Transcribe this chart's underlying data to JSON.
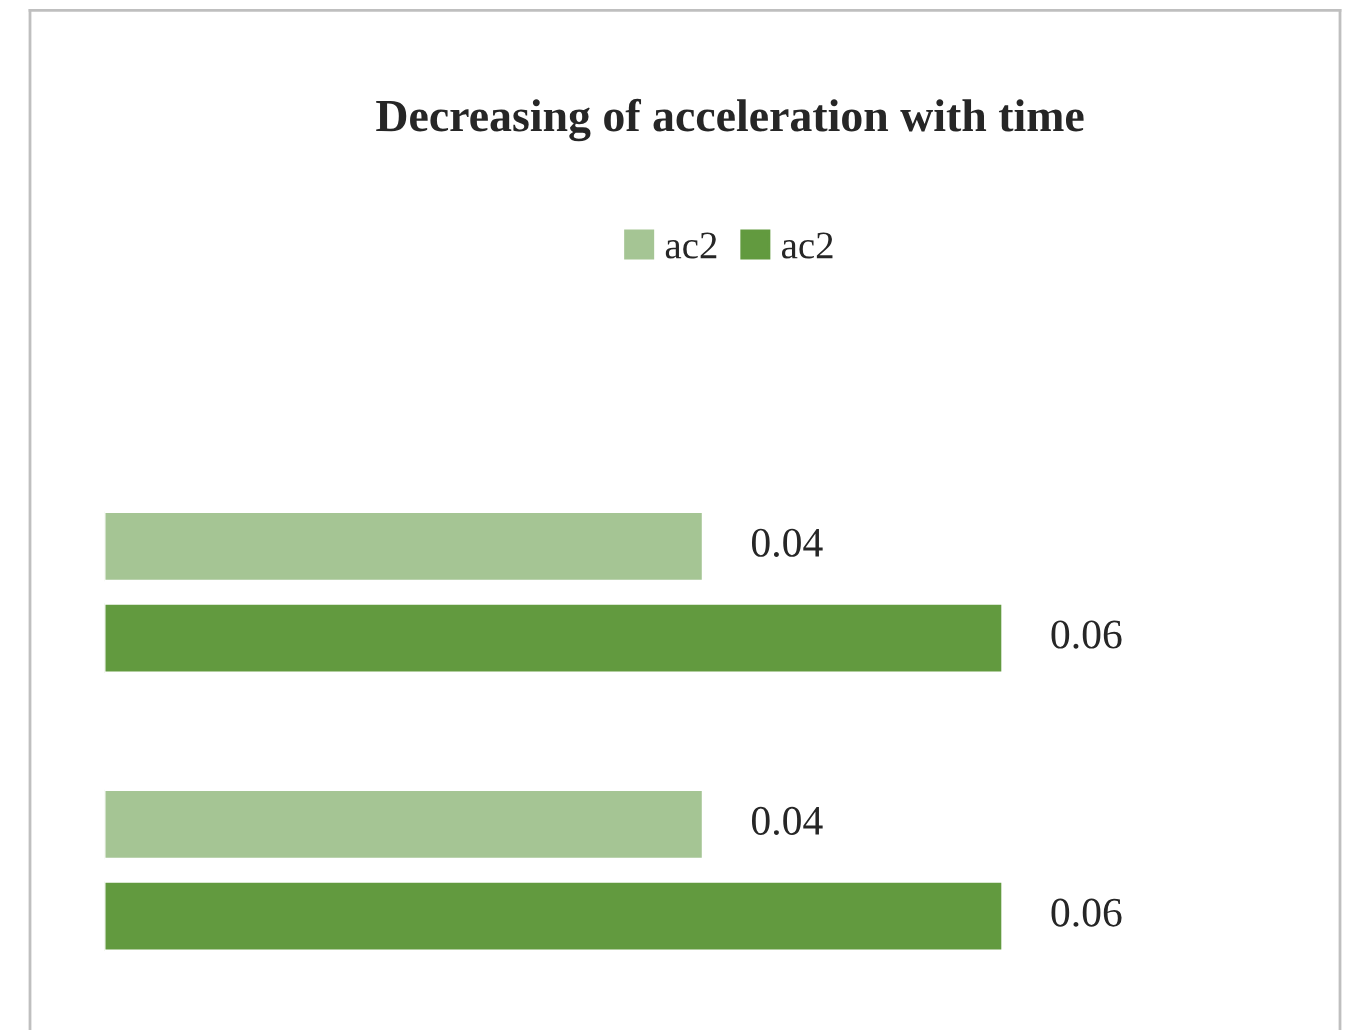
{
  "chart_data": {
    "type": "bar",
    "orientation": "horizontal",
    "title": "Decreasing of acceleration with time",
    "categories": [
      null,
      null
    ],
    "series": [
      {
        "name": "ac2",
        "color": "#a5c594",
        "values": [
          0.04,
          0.04
        ]
      },
      {
        "name": "ac2",
        "color": "#629a3f",
        "values": [
          0.06,
          0.06
        ]
      }
    ],
    "data_labels": true,
    "legend": "top",
    "grid": false,
    "tick_labels": false
  }
}
